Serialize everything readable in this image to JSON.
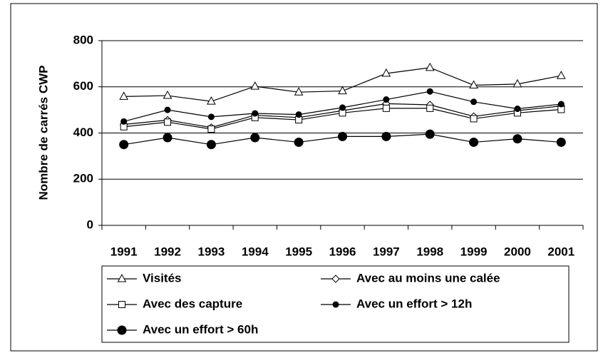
{
  "chart_data": {
    "type": "line",
    "y_label": "Nombre de carrés CWP",
    "categories": [
      "1991",
      "1992",
      "1993",
      "1994",
      "1995",
      "1996",
      "1997",
      "1998",
      "1999",
      "2000",
      "2001"
    ],
    "series": [
      {
        "name": "Visités",
        "color": "#000000",
        "marker": "triangle",
        "values": [
          558,
          562,
          537,
          602,
          577,
          582,
          658,
          683,
          607,
          612,
          648
        ]
      },
      {
        "name": "Avec au moins une calée",
        "color": "#000000",
        "marker": "diamond",
        "values": [
          437,
          456,
          424,
          477,
          467,
          497,
          527,
          522,
          472,
          497,
          517
        ]
      },
      {
        "name": "Avec des capture",
        "color": "#000000",
        "marker": "square",
        "values": [
          427,
          447,
          417,
          467,
          457,
          487,
          507,
          507,
          462,
          487,
          502
        ]
      },
      {
        "name": "Avec un effort > 12h",
        "color": "#000000",
        "marker": "dot",
        "values": [
          450,
          500,
          470,
          485,
          480,
          510,
          545,
          580,
          535,
          505,
          525
        ]
      },
      {
        "name": "Avec un effort > 60h",
        "color": "#000000",
        "marker": "bigdot",
        "values": [
          350,
          380,
          350,
          380,
          360,
          385,
          385,
          395,
          360,
          375,
          360
        ]
      }
    ],
    "ylim": [
      0,
      800
    ],
    "yticks": [
      0,
      200,
      400,
      600,
      800
    ],
    "grid": true
  }
}
